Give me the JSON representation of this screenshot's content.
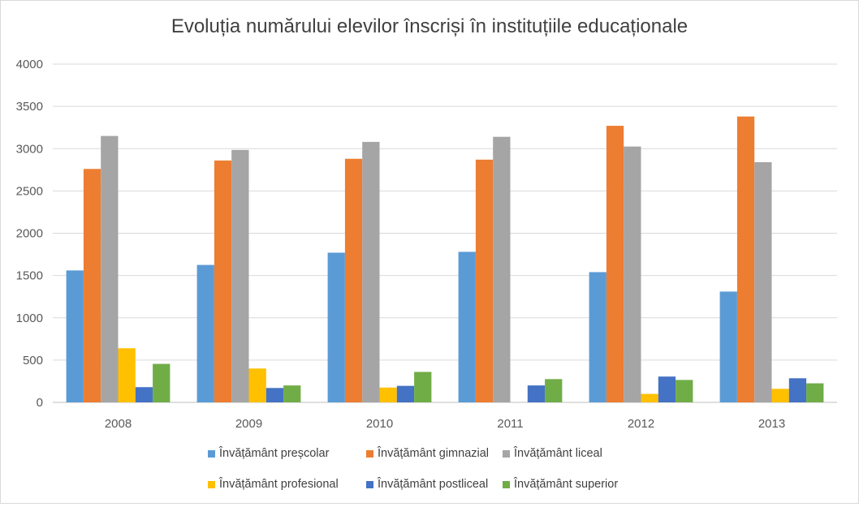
{
  "chart_data": {
    "type": "bar",
    "title": "Evoluția numărului elevilor înscriși în instituțiile educaționale",
    "xlabel": "",
    "ylabel": "",
    "ylim": [
      0,
      4000
    ],
    "yticks": [
      0,
      500,
      1000,
      1500,
      2000,
      2500,
      3000,
      3500,
      4000
    ],
    "grid": true,
    "legend_position": "bottom",
    "categories": [
      "2008",
      "2009",
      "2010",
      "2011",
      "2012",
      "2013"
    ],
    "series": [
      {
        "name": "Învățământ preșcolar",
        "color": "#5b9bd5",
        "values": [
          1560,
          1625,
          1770,
          1780,
          1540,
          1310
        ]
      },
      {
        "name": "Învățământ gimnazial",
        "color": "#ed7d31",
        "values": [
          2760,
          2860,
          2880,
          2870,
          3270,
          3380
        ]
      },
      {
        "name": "Învățământ liceal",
        "color": "#a5a5a5",
        "values": [
          3150,
          2985,
          3080,
          3140,
          3025,
          2840
        ]
      },
      {
        "name": "Învățământ profesional",
        "color": "#ffc000",
        "values": [
          640,
          400,
          175,
          0,
          100,
          160
        ]
      },
      {
        "name": "Învățământ postliceal",
        "color": "#4472c4",
        "values": [
          180,
          170,
          195,
          200,
          305,
          285
        ]
      },
      {
        "name": "Învățământ superior",
        "color": "#70ad47",
        "values": [
          455,
          200,
          360,
          275,
          265,
          225
        ]
      }
    ]
  }
}
